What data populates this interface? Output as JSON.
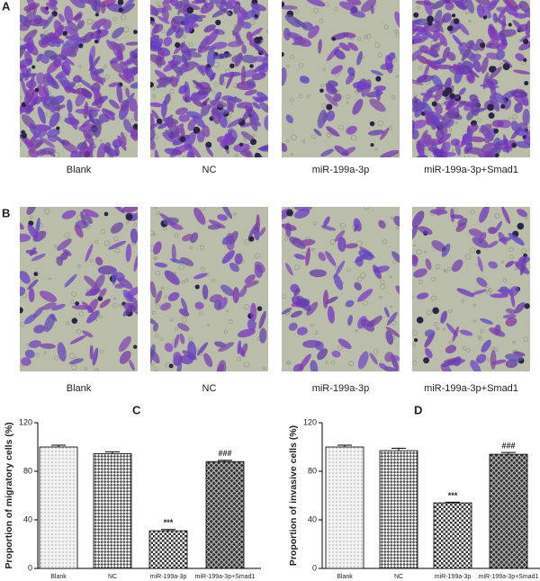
{
  "panels": [
    {
      "label": "A",
      "captions": [
        "Blank",
        "NC",
        "miR-199a-3p",
        "miR-199a-3p+Smad1"
      ]
    },
    {
      "label": "B",
      "captions": [
        "Blank",
        "NC",
        "miR-199a-3p",
        "miR-199a-3p+Smad1"
      ]
    }
  ],
  "chart_data": [
    {
      "type": "bar",
      "panel_label": "C",
      "y_label": "Proportion of migratory cells (%)",
      "categories": [
        "Blank",
        "NC",
        "miR-199a-3p",
        "miR-199a-3p+Smad1"
      ],
      "values": [
        100,
        94.5,
        31,
        88
      ],
      "errors": [
        1.5,
        1.5,
        1,
        1
      ],
      "annotations": [
        null,
        null,
        "***",
        "###"
      ],
      "ylim": [
        0,
        120
      ],
      "yticks": [
        0,
        40,
        80,
        120
      ]
    },
    {
      "type": "bar",
      "panel_label": "D",
      "y_label": "Proportion of invasive cells (%)",
      "categories": [
        "Blank",
        "NC",
        "miR-199a-3p",
        "miR-199a-3p+Smad1"
      ],
      "values": [
        100,
        97,
        54,
        94
      ],
      "errors": [
        1.5,
        2,
        0.5,
        1.5
      ],
      "annotations": [
        null,
        null,
        "***",
        "###"
      ],
      "ylim": [
        0,
        120
      ],
      "yticks": [
        0,
        40,
        80,
        120
      ]
    }
  ]
}
